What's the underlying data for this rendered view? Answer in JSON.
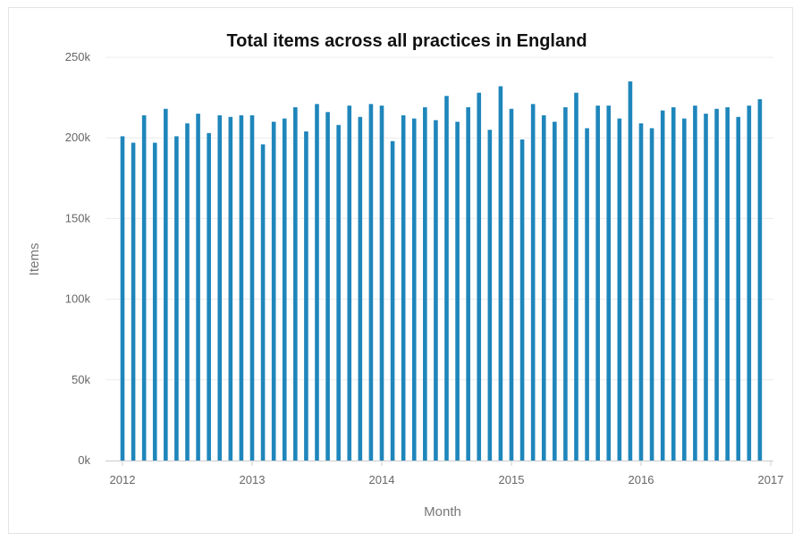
{
  "chart_data": {
    "type": "bar",
    "title": "Total items across all practices in England",
    "xlabel": "Month",
    "ylabel": "Items",
    "ylim": [
      0,
      250000
    ],
    "yticks": [
      {
        "value": 0,
        "label": "0k"
      },
      {
        "value": 50000,
        "label": "50k"
      },
      {
        "value": 100000,
        "label": "100k"
      },
      {
        "value": 150000,
        "label": "150k"
      },
      {
        "value": 200000,
        "label": "200k"
      },
      {
        "value": 250000,
        "label": "250k"
      }
    ],
    "xticks": [
      {
        "date": "2012-01",
        "label": "2012"
      },
      {
        "date": "2013-01",
        "label": "2013"
      },
      {
        "date": "2014-01",
        "label": "2014"
      },
      {
        "date": "2015-01",
        "label": "2015"
      },
      {
        "date": "2016-01",
        "label": "2016"
      },
      {
        "date": "2017-01",
        "label": "2017"
      }
    ],
    "xrange": [
      "2012-01",
      "2017-01"
    ],
    "grid": "horizontal",
    "legend": "none",
    "color": "#1f86bb",
    "series": [
      {
        "x": [
          "2012-01",
          "2012-02",
          "2012-03",
          "2012-04",
          "2012-05",
          "2012-06",
          "2012-07",
          "2012-08",
          "2012-09",
          "2012-10",
          "2012-11",
          "2012-12",
          "2013-01",
          "2013-02",
          "2013-03",
          "2013-04",
          "2013-05",
          "2013-06",
          "2013-07",
          "2013-08",
          "2013-09",
          "2013-10",
          "2013-11",
          "2013-12",
          "2014-01",
          "2014-02",
          "2014-03",
          "2014-04",
          "2014-05",
          "2014-06",
          "2014-07",
          "2014-08",
          "2014-09",
          "2014-10",
          "2014-11",
          "2014-12",
          "2015-01",
          "2015-02",
          "2015-03",
          "2015-04",
          "2015-05",
          "2015-06",
          "2015-07",
          "2015-08",
          "2015-09",
          "2015-10",
          "2015-11",
          "2015-12",
          "2016-01",
          "2016-02",
          "2016-03",
          "2016-04",
          "2016-05",
          "2016-06",
          "2016-07",
          "2016-08",
          "2016-09",
          "2016-10",
          "2016-11",
          "2016-12"
        ],
        "values": [
          201000,
          197000,
          214000,
          197000,
          218000,
          201000,
          209000,
          215000,
          203000,
          214000,
          213000,
          214000,
          214000,
          196000,
          210000,
          212000,
          219000,
          204000,
          221000,
          216000,
          208000,
          220000,
          213000,
          221000,
          220000,
          198000,
          214000,
          212000,
          219000,
          211000,
          226000,
          210000,
          219000,
          228000,
          205000,
          232000,
          218000,
          199000,
          221000,
          214000,
          210000,
          219000,
          228000,
          206000,
          220000,
          220000,
          212000,
          235000,
          209000,
          206000,
          217000,
          219000,
          212000,
          220000,
          215000,
          218000,
          219000,
          213000,
          220000,
          224000
        ]
      }
    ]
  }
}
